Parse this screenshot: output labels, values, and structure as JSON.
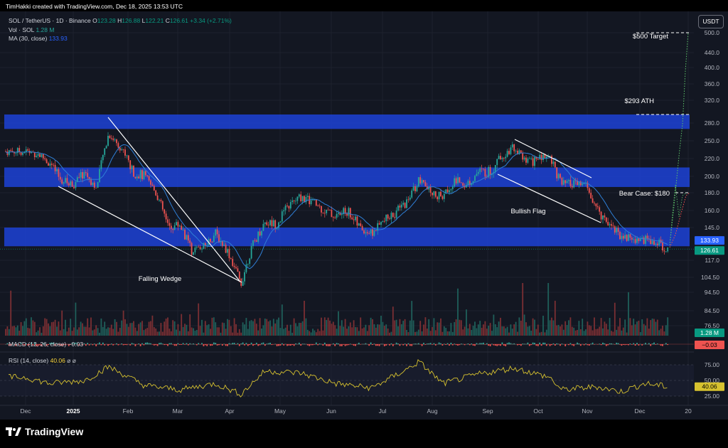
{
  "header": {
    "created_by": "TimHakki created with TradingView.com, Dec 18, 2025 13:53 UTC"
  },
  "legend": {
    "symbol": "SOL / TetherUS · 1D · Binance",
    "o_label": "O",
    "o_value": "123.28",
    "h_label": "H",
    "h_value": "126.88",
    "l_label": "L",
    "l_value": "122.21",
    "c_label": "C",
    "c_value": "126.61",
    "change": "+3.34 (+2.71%)",
    "vol_label": "Vol · SOL",
    "vol_value": "1.28 M",
    "ma_label": "MA (30, close)",
    "ma_value": "133.93"
  },
  "currency_button": "USDT",
  "macd_title": "MACD (12, 26, close) −0.03",
  "rsi_title_label": "RSI (14, close)",
  "rsi_value": "40.06",
  "rsi_icons": "⌀ ⌀",
  "footer": {
    "brand": "TradingView"
  },
  "colors": {
    "bg": "#131722",
    "zone": "#1c3fc9",
    "up": "#26a69a",
    "down": "#ef5350",
    "ma": "#2f7fd6",
    "rsi": "#d7c22f",
    "price_tag": "#089981",
    "ma_tag": "#2962ff"
  },
  "chart_data": {
    "type": "candlestick",
    "title": "SOL / TetherUS · 1D · Binance",
    "price_axis_ticks": [
      500.0,
      440.0,
      400.0,
      360.0,
      320.0,
      280.0,
      250.0,
      220.0,
      200.0,
      180.0,
      160.0,
      145.0,
      133.93,
      126.61,
      117.0,
      104.5,
      94.5,
      84.5,
      76.5
    ],
    "price_axis_labels": [
      "500.0",
      "440.0",
      "400.0",
      "360.0",
      "320.0",
      "280.0",
      "250.0",
      "220.0",
      "200.0",
      "180.0",
      "160.0",
      "145.0",
      "133.93",
      "126.61",
      "117.0",
      "104.50",
      "94.50",
      "84.50",
      "76.50"
    ],
    "volume_tag": "1.28 M",
    "macd_tag": "−0.03",
    "rsi_axis_ticks": [
      "75.00",
      "50.00",
      "40.06",
      "25.00"
    ],
    "time_axis_labels": [
      "Dec",
      "2025",
      "Feb",
      "Mar",
      "Apr",
      "May",
      "Jun",
      "Jul",
      "Aug",
      "Sep",
      "Oct",
      "Nov",
      "Dec",
      "20"
    ],
    "last_price": 126.61,
    "ma_value": 133.93,
    "zones": [
      {
        "low": 270,
        "high": 295
      },
      {
        "low": 187,
        "high": 210
      },
      {
        "low": 129,
        "high": 145
      }
    ],
    "annotations": [
      {
        "text": "$500 Target",
        "value": 500
      },
      {
        "text": "$293 ATH",
        "value": 293
      },
      {
        "text": "Bear Case: $180",
        "value": 180
      },
      {
        "text": "Falling Wedge"
      },
      {
        "text": "Bullish Flag"
      }
    ],
    "price_path": [
      {
        "d": "2024-12-01",
        "v": 232
      },
      {
        "d": "2024-12-08",
        "v": 228
      },
      {
        "d": "2024-12-15",
        "v": 215
      },
      {
        "d": "2024-12-22",
        "v": 195
      },
      {
        "d": "2024-12-29",
        "v": 190
      },
      {
        "d": "2025-01-05",
        "v": 205
      },
      {
        "d": "2025-01-12",
        "v": 185
      },
      {
        "d": "2025-01-19",
        "v": 262
      },
      {
        "d": "2025-01-26",
        "v": 240
      },
      {
        "d": "2025-02-02",
        "v": 205
      },
      {
        "d": "2025-02-09",
        "v": 200
      },
      {
        "d": "2025-02-16",
        "v": 180
      },
      {
        "d": "2025-02-23",
        "v": 145
      },
      {
        "d": "2025-03-02",
        "v": 148
      },
      {
        "d": "2025-03-09",
        "v": 125
      },
      {
        "d": "2025-03-16",
        "v": 128
      },
      {
        "d": "2025-03-23",
        "v": 140
      },
      {
        "d": "2025-03-30",
        "v": 125
      },
      {
        "d": "2025-04-07",
        "v": 100
      },
      {
        "d": "2025-04-14",
        "v": 130
      },
      {
        "d": "2025-04-21",
        "v": 150
      },
      {
        "d": "2025-04-28",
        "v": 148
      },
      {
        "d": "2025-05-05",
        "v": 165
      },
      {
        "d": "2025-05-12",
        "v": 175
      },
      {
        "d": "2025-05-19",
        "v": 170
      },
      {
        "d": "2025-05-26",
        "v": 160
      },
      {
        "d": "2025-06-02",
        "v": 155
      },
      {
        "d": "2025-06-09",
        "v": 160
      },
      {
        "d": "2025-06-16",
        "v": 145
      },
      {
        "d": "2025-06-23",
        "v": 140
      },
      {
        "d": "2025-06-30",
        "v": 150
      },
      {
        "d": "2025-07-07",
        "v": 158
      },
      {
        "d": "2025-07-14",
        "v": 170
      },
      {
        "d": "2025-07-21",
        "v": 195
      },
      {
        "d": "2025-07-28",
        "v": 180
      },
      {
        "d": "2025-08-04",
        "v": 175
      },
      {
        "d": "2025-08-11",
        "v": 195
      },
      {
        "d": "2025-08-18",
        "v": 190
      },
      {
        "d": "2025-08-25",
        "v": 205
      },
      {
        "d": "2025-09-01",
        "v": 205
      },
      {
        "d": "2025-09-08",
        "v": 225
      },
      {
        "d": "2025-09-15",
        "v": 240
      },
      {
        "d": "2025-09-22",
        "v": 215
      },
      {
        "d": "2025-09-29",
        "v": 220
      },
      {
        "d": "2025-10-06",
        "v": 225
      },
      {
        "d": "2025-10-13",
        "v": 190
      },
      {
        "d": "2025-10-20",
        "v": 190
      },
      {
        "d": "2025-10-27",
        "v": 190
      },
      {
        "d": "2025-11-03",
        "v": 160
      },
      {
        "d": "2025-11-10",
        "v": 150
      },
      {
        "d": "2025-11-17",
        "v": 138
      },
      {
        "d": "2025-11-24",
        "v": 135
      },
      {
        "d": "2025-12-01",
        "v": 135
      },
      {
        "d": "2025-12-08",
        "v": 132
      },
      {
        "d": "2025-12-15",
        "v": 126.61
      }
    ],
    "rsi_path": [
      {
        "d": "2024-12-01",
        "v": 55
      },
      {
        "d": "2024-12-15",
        "v": 45
      },
      {
        "d": "2025-01-05",
        "v": 50
      },
      {
        "d": "2025-01-19",
        "v": 72
      },
      {
        "d": "2025-02-09",
        "v": 42
      },
      {
        "d": "2025-03-02",
        "v": 35
      },
      {
        "d": "2025-03-23",
        "v": 45
      },
      {
        "d": "2025-04-07",
        "v": 28
      },
      {
        "d": "2025-04-21",
        "v": 65
      },
      {
        "d": "2025-05-12",
        "v": 62
      },
      {
        "d": "2025-06-02",
        "v": 45
      },
      {
        "d": "2025-06-23",
        "v": 38
      },
      {
        "d": "2025-07-14",
        "v": 68
      },
      {
        "d": "2025-07-21",
        "v": 80
      },
      {
        "d": "2025-08-04",
        "v": 45
      },
      {
        "d": "2025-08-25",
        "v": 60
      },
      {
        "d": "2025-09-15",
        "v": 70
      },
      {
        "d": "2025-10-06",
        "v": 55
      },
      {
        "d": "2025-10-13",
        "v": 35
      },
      {
        "d": "2025-11-03",
        "v": 40
      },
      {
        "d": "2025-11-17",
        "v": 32
      },
      {
        "d": "2025-12-01",
        "v": 45
      },
      {
        "d": "2025-12-15",
        "v": 40.06
      }
    ]
  }
}
